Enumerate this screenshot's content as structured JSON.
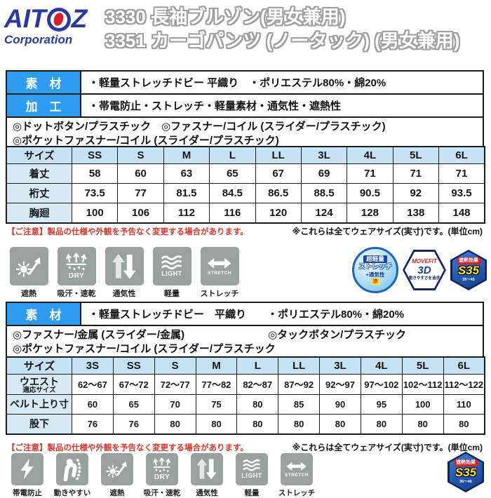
{
  "header": {
    "logo_part1": "AIT",
    "logo_part2": "Z",
    "logo_sub": "Corporation",
    "title_line1": "3330 長袖ブルゾン(男女兼用)",
    "title_line2": "3351 カーゴパンツ (ノータック) (男女兼用)"
  },
  "colors": {
    "label_blue": "#2e9df1",
    "table_header_blue": "#c6e2f2",
    "table_label_blue": "#d8eaf6",
    "icon_gray": "#98a29e",
    "note_red": "#d9352b",
    "logo_blue": "#2b3a9e",
    "logo_red": "#d42028"
  },
  "section_jacket": {
    "material_label": "素　材",
    "material_text": "・軽量ストレッチドビー 平織り　・ポリエステル80%・綿20%",
    "process_label": "加　工",
    "process_text": "・帯電防止・ストレッチ・軽量素材・通気性・遮熱性",
    "detail_line1": "◎ドットボタン/プラスチック　◎ファスナー/コイル (スライダー/プラスチック)",
    "detail_line2": "◎ポケットファスナー/コイル (スライダー/プラスチック)"
  },
  "section_pants": {
    "material_label": "素　材",
    "material_text": "・軽量ストレッチドビー　平織り　　・ポリエステル80%・綿20%",
    "detail_left": "◎ファスナー/金属 (スライダー/金属)",
    "detail_right": "◎タックボタン/プラスチック",
    "detail_line2": "◎ポケットファスナー/コイル (スライダー/プラスチック"
  },
  "size_table_jacket": {
    "columns": [
      "サイズ",
      "SS",
      "S",
      "M",
      "L",
      "LL",
      "3L",
      "4L",
      "5L",
      "6L"
    ],
    "rows": [
      {
        "label": "着丈",
        "values": [
          "58",
          "60",
          "63",
          "65",
          "67",
          "69",
          "71",
          "71",
          "71"
        ]
      },
      {
        "label": "裄丈",
        "values": [
          "73.5",
          "77",
          "81.5",
          "84.5",
          "86.5",
          "88.5",
          "90.5",
          "92",
          "93.5"
        ]
      },
      {
        "label": "胸廻",
        "values": [
          "100",
          "106",
          "112",
          "116",
          "120",
          "124",
          "128",
          "138",
          "148"
        ]
      }
    ]
  },
  "size_table_pants": {
    "columns": [
      "サイズ",
      "3S",
      "SS",
      "S",
      "M",
      "L",
      "LL",
      "3L",
      "4L",
      "5L",
      "6L"
    ],
    "rows": [
      {
        "label": "ウエスト",
        "sublabel": "適応サイズ",
        "values": [
          "62〜67",
          "67〜72",
          "72〜77",
          "77〜82",
          "82〜87",
          "87〜92",
          "92〜97",
          "97〜102",
          "102〜112",
          "112〜122"
        ]
      },
      {
        "label": "ベルト上り寸",
        "values": [
          "60",
          "65",
          "70",
          "75",
          "80",
          "85",
          "90",
          "95",
          "100",
          "110"
        ]
      },
      {
        "label": "股下",
        "values": [
          "76",
          "76",
          "80",
          "80",
          "80",
          "80",
          "80",
          "80",
          "80",
          "80"
        ]
      }
    ]
  },
  "notes": {
    "caution": "【ご注意】製品の仕様や外観を予告なく変更する場合があります。",
    "size_note": "※これらは全てウェアサイズ(実寸)です。(単位cm)"
  },
  "feature_icons_jacket": [
    {
      "glyph": "sun",
      "label": "遮熱"
    },
    {
      "glyph": "dry",
      "label": "吸汗・速乾",
      "text": "DRY"
    },
    {
      "glyph": "air",
      "label": "通気性"
    },
    {
      "glyph": "light",
      "label": "軽量",
      "text": "LIGHT"
    },
    {
      "glyph": "stretch",
      "label": "ストレッチ",
      "text": "STRETCH"
    }
  ],
  "feature_icons_pants": [
    {
      "glyph": "lightning",
      "label": "帯電防止"
    },
    {
      "glyph": "person",
      "label": "動きやすい"
    },
    {
      "glyph": "sun",
      "label": "遮熱"
    },
    {
      "glyph": "dry",
      "label": "吸汗・速乾",
      "text": "DRY"
    },
    {
      "glyph": "air",
      "label": "通気性"
    },
    {
      "glyph": "light",
      "label": "軽量",
      "text": "LIGHT"
    },
    {
      "glyph": "stretch",
      "label": "ストレッチ",
      "text": "STRETCH"
    }
  ],
  "badges": {
    "lightweight": {
      "top": "超軽量",
      "mid": "ストレッチ",
      "sub": "+通気性",
      "tag": "涼"
    },
    "movefit": {
      "brand": "MOVEFIT",
      "big": "3D",
      "caption": "動きやすさを追求"
    },
    "s35": {
      "top": "遮熱効果",
      "main": "S35",
      "sub": "35〜45"
    }
  }
}
